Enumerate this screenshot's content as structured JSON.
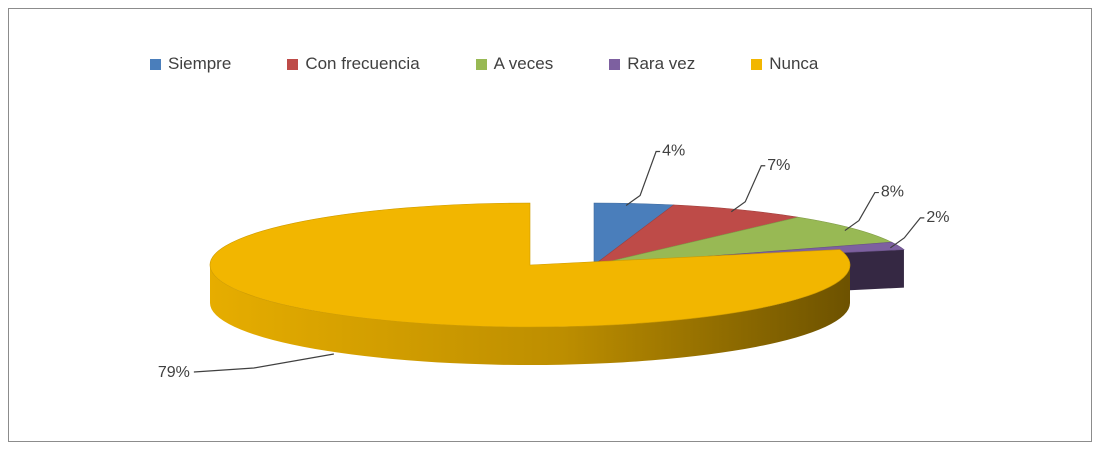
{
  "chart_data": {
    "type": "pie",
    "title": "",
    "legend_position": "top",
    "exploded_3d": true,
    "categories": [
      "Siempre",
      "Con frecuencia",
      "A veces",
      "Rara vez",
      "Nunca"
    ],
    "values": [
      4,
      7,
      8,
      2,
      79
    ],
    "labels": [
      "4%",
      "7%",
      "8%",
      "2%",
      "79%"
    ],
    "colors": [
      "#4A7EBB",
      "#BE4B48",
      "#98B954",
      "#7D60A0",
      "#F2B600"
    ]
  }
}
